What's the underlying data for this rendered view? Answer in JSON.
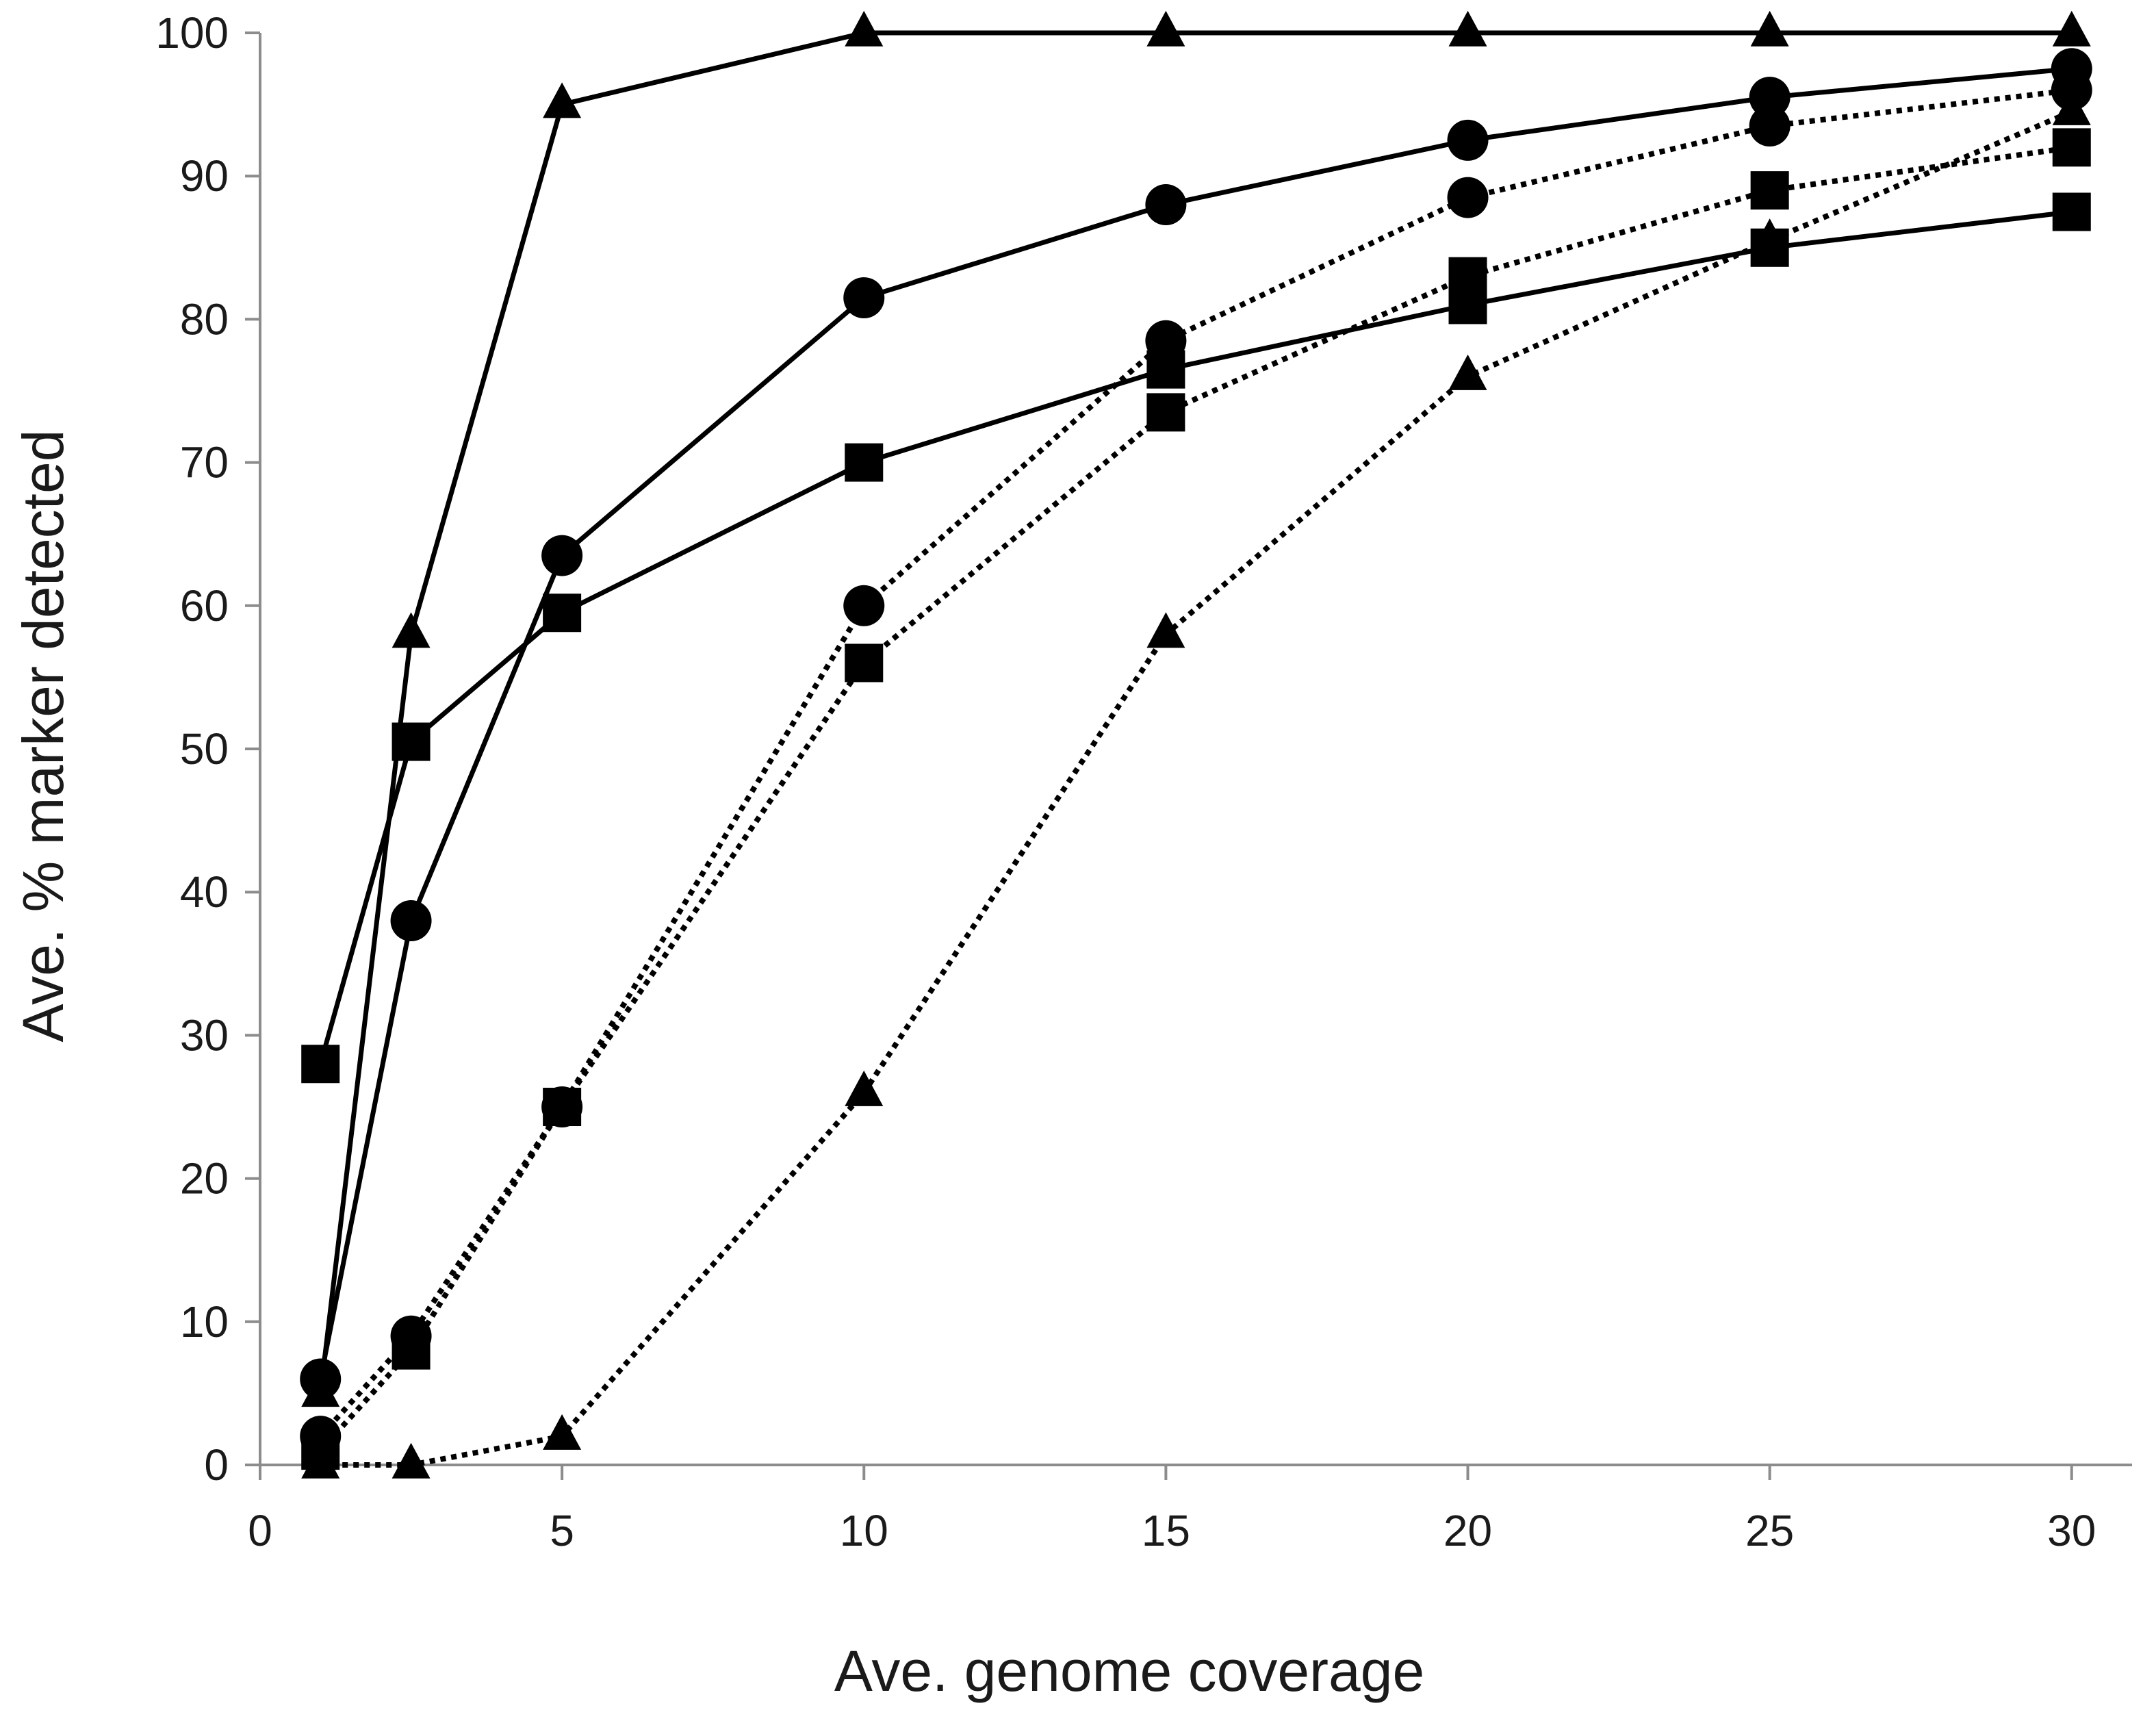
{
  "chart_data": {
    "type": "line",
    "title": "",
    "xlabel": "Ave. genome coverage",
    "ylabel": "Ave. % marker detected",
    "xlim": [
      0,
      31
    ],
    "ylim": [
      0,
      100
    ],
    "xticks": [
      0,
      5,
      10,
      15,
      20,
      25,
      30
    ],
    "yticks": [
      0,
      10,
      20,
      30,
      40,
      50,
      60,
      70,
      80,
      90,
      100
    ],
    "x": [
      1,
      2.5,
      5,
      10,
      15,
      20,
      25,
      30
    ],
    "grid": false,
    "legend": "none",
    "series": [
      {
        "marker": "triangle",
        "style": "solid",
        "values": [
          5,
          58,
          95,
          100,
          100,
          100,
          100,
          100
        ]
      },
      {
        "marker": "circle",
        "style": "solid",
        "values": [
          6,
          38,
          63.5,
          81.5,
          88,
          92.5,
          95.5,
          97.5
        ]
      },
      {
        "marker": "square",
        "style": "solid",
        "values": [
          28,
          50.5,
          59.5,
          70,
          76.5,
          81,
          85,
          87.5
        ]
      },
      {
        "marker": "circle",
        "style": "dotted",
        "values": [
          2,
          9,
          25,
          60,
          78.5,
          88.5,
          93.5,
          96
        ]
      },
      {
        "marker": "square",
        "style": "dotted",
        "values": [
          1,
          8,
          25,
          56,
          73.5,
          83,
          89,
          92
        ]
      },
      {
        "marker": "triangle",
        "style": "dotted",
        "values": [
          0,
          0,
          2,
          26,
          58,
          76,
          85.5,
          94.5
        ]
      }
    ],
    "colors": {
      "line": "#000000",
      "axis": "#8c8c8c",
      "text": "#1a1a1a"
    }
  }
}
